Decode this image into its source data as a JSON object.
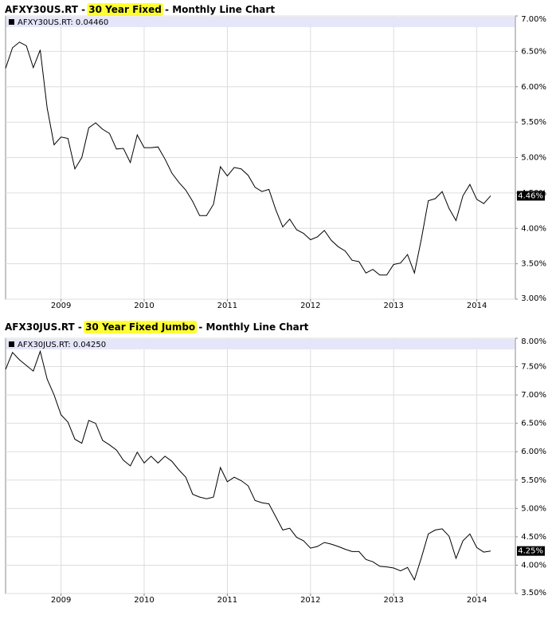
{
  "chart_data": [
    {
      "type": "line",
      "title_prefix": "AFXY30US.RT - ",
      "title_highlight": "30 Year Fixed",
      "title_suffix": " - Monthly Line Chart",
      "categories": [
        null,
        null,
        null,
        null,
        null,
        null,
        null,
        null,
        "2009",
        null,
        null,
        null,
        null,
        null,
        null,
        null,
        null,
        null,
        null,
        null,
        "2010",
        null,
        null,
        null,
        null,
        null,
        null,
        null,
        null,
        null,
        null,
        null,
        "2011",
        null,
        null,
        null,
        null,
        null,
        null,
        null,
        null,
        null,
        null,
        null,
        "2012",
        null,
        null,
        null,
        null,
        null,
        null,
        null,
        null,
        null,
        null,
        null,
        "2013",
        null,
        null,
        null,
        null,
        null,
        null,
        null,
        null,
        null,
        null,
        null,
        "2014",
        null,
        null
      ],
      "series": [
        {
          "name": "AFXY30US.RT: 0.04460",
          "color": "#000000",
          "values": [
            6.26,
            6.55,
            6.63,
            6.58,
            6.27,
            6.52,
            5.7,
            5.18,
            5.29,
            5.27,
            4.84,
            5.0,
            5.42,
            5.49,
            5.4,
            5.34,
            5.12,
            5.13,
            4.93,
            5.32,
            5.14,
            5.14,
            5.15,
            4.98,
            4.78,
            4.65,
            4.54,
            4.38,
            4.18,
            4.18,
            4.34,
            4.87,
            4.74,
            4.86,
            4.84,
            4.75,
            4.58,
            4.52,
            4.55,
            4.26,
            4.02,
            4.13,
            3.98,
            3.93,
            3.84,
            3.88,
            3.97,
            3.83,
            3.74,
            3.68,
            3.55,
            3.53,
            3.37,
            3.42,
            3.34,
            3.34,
            3.49,
            3.51,
            3.63,
            3.37,
            3.85,
            4.39,
            4.42,
            4.52,
            4.28,
            4.11,
            4.46,
            4.62,
            4.41,
            4.35,
            4.46
          ]
        }
      ],
      "last_value_label": "4.46%",
      "ylim": [
        3,
        7
      ],
      "yticks": [
        {
          "value": 3,
          "label": "3.00%"
        },
        {
          "value": 3.5,
          "label": "3.50%"
        },
        {
          "value": 4,
          "label": "4.00%"
        },
        {
          "value": 4.5,
          "label": "4.50%"
        },
        {
          "value": 5,
          "label": "5.00%"
        },
        {
          "value": 5.5,
          "label": "5.50%"
        },
        {
          "value": 6,
          "label": "6.00%"
        },
        {
          "value": 6.5,
          "label": "6.50%"
        },
        {
          "value": 7,
          "label": "7.00%"
        }
      ],
      "grid": true
    },
    {
      "type": "line",
      "title_prefix": "AFX30JUS.RT - ",
      "title_highlight": "30 Year Fixed Jumbo",
      "title_suffix": " - Monthly Line Chart",
      "categories": [
        null,
        null,
        null,
        null,
        null,
        null,
        null,
        null,
        "2009",
        null,
        null,
        null,
        null,
        null,
        null,
        null,
        null,
        null,
        null,
        null,
        "2010",
        null,
        null,
        null,
        null,
        null,
        null,
        null,
        null,
        null,
        null,
        null,
        "2011",
        null,
        null,
        null,
        null,
        null,
        null,
        null,
        null,
        null,
        null,
        null,
        "2012",
        null,
        null,
        null,
        null,
        null,
        null,
        null,
        null,
        null,
        null,
        null,
        "2013",
        null,
        null,
        null,
        null,
        null,
        null,
        null,
        null,
        null,
        null,
        null,
        "2014",
        null,
        null
      ],
      "series": [
        {
          "name": "AFX30JUS.RT: 0.04250",
          "color": "#000000",
          "values": [
            7.45,
            7.75,
            7.62,
            7.52,
            7.42,
            7.77,
            7.28,
            7.0,
            6.65,
            6.52,
            6.22,
            6.15,
            6.55,
            6.5,
            6.2,
            6.12,
            6.03,
            5.85,
            5.75,
            5.99,
            5.8,
            5.92,
            5.8,
            5.92,
            5.83,
            5.68,
            5.55,
            5.25,
            5.2,
            5.17,
            5.2,
            5.72,
            5.47,
            5.55,
            5.49,
            5.4,
            5.14,
            5.1,
            5.08,
            4.85,
            4.62,
            4.65,
            4.49,
            4.43,
            4.3,
            4.33,
            4.4,
            4.37,
            4.33,
            4.28,
            4.24,
            4.24,
            4.1,
            4.06,
            3.98,
            3.97,
            3.95,
            3.9,
            3.96,
            3.74,
            4.13,
            4.55,
            4.62,
            4.64,
            4.51,
            4.12,
            4.43,
            4.55,
            4.31,
            4.23,
            4.25
          ]
        }
      ],
      "last_value_label": "4.25%",
      "ylim": [
        3.5,
        8
      ],
      "yticks": [
        {
          "value": 3.5,
          "label": "3.50%"
        },
        {
          "value": 4,
          "label": "4.00%"
        },
        {
          "value": 4.5,
          "label": "4.50%"
        },
        {
          "value": 5,
          "label": "5.00%"
        },
        {
          "value": 5.5,
          "label": "5.50%"
        },
        {
          "value": 6,
          "label": "6.00%"
        },
        {
          "value": 6.5,
          "label": "6.50%"
        },
        {
          "value": 7,
          "label": "7.00%"
        },
        {
          "value": 7.5,
          "label": "7.50%"
        },
        {
          "value": 8,
          "label": "8.00%"
        }
      ],
      "grid": true
    }
  ]
}
